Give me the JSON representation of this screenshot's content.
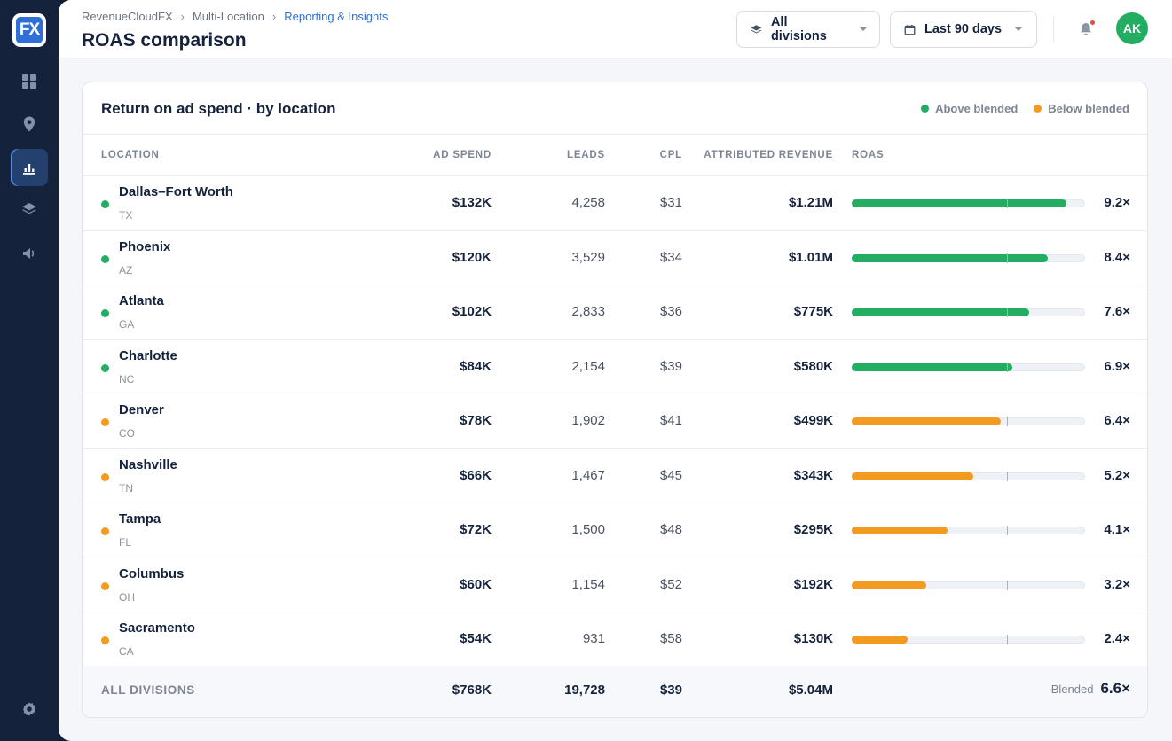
{
  "app": {
    "logo_text": "FX"
  },
  "sidebar": {
    "items": [
      {
        "icon": "grid-icon",
        "active": false
      },
      {
        "icon": "location-pin-icon",
        "active": false
      },
      {
        "icon": "bar-chart-icon",
        "active": true
      },
      {
        "icon": "layers-icon",
        "active": false
      },
      {
        "icon": "megaphone-icon",
        "active": false
      }
    ],
    "bottom_icon": "settings-gear-icon"
  },
  "header": {
    "breadcrumbs": [
      "RevenueCloudFX",
      "Multi-Location",
      "Reporting & Insights"
    ],
    "page_title": "ROAS comparison",
    "division_filter": "All divisions",
    "date_filter": "Last 90 days",
    "avatar_initials": "AK"
  },
  "card": {
    "title": "Return on ad spend · by location",
    "legend": {
      "above": "Above blended",
      "below": "Below blended",
      "above_color": "#22ad63",
      "below_color": "#f39a21"
    },
    "columns": {
      "location": "LOCATION",
      "ad_spend": "AD SPEND",
      "leads": "LEADS",
      "cpl": "CPL",
      "revenue": "ATTRIBUTED REVENUE",
      "roas": "ROAS"
    },
    "roas_scale_max": 10,
    "rows": [
      {
        "name": "Dallas–Fort Worth",
        "state": "TX",
        "spend": "$132K",
        "leads": "4,258",
        "cpl": "$31",
        "revenue": "$1.21M",
        "roas": "9.2×",
        "roas_value": 9.2,
        "above": true
      },
      {
        "name": "Phoenix",
        "state": "AZ",
        "spend": "$120K",
        "leads": "3,529",
        "cpl": "$34",
        "revenue": "$1.01M",
        "roas": "8.4×",
        "roas_value": 8.4,
        "above": true
      },
      {
        "name": "Atlanta",
        "state": "GA",
        "spend": "$102K",
        "leads": "2,833",
        "cpl": "$36",
        "revenue": "$775K",
        "roas": "7.6×",
        "roas_value": 7.6,
        "above": true
      },
      {
        "name": "Charlotte",
        "state": "NC",
        "spend": "$84K",
        "leads": "2,154",
        "cpl": "$39",
        "revenue": "$580K",
        "roas": "6.9×",
        "roas_value": 6.9,
        "above": true
      },
      {
        "name": "Denver",
        "state": "CO",
        "spend": "$78K",
        "leads": "1,902",
        "cpl": "$41",
        "revenue": "$499K",
        "roas": "6.4×",
        "roas_value": 6.4,
        "above": false
      },
      {
        "name": "Nashville",
        "state": "TN",
        "spend": "$66K",
        "leads": "1,467",
        "cpl": "$45",
        "revenue": "$343K",
        "roas": "5.2×",
        "roas_value": 5.2,
        "above": false
      },
      {
        "name": "Tampa",
        "state": "FL",
        "spend": "$72K",
        "leads": "1,500",
        "cpl": "$48",
        "revenue": "$295K",
        "roas": "4.1×",
        "roas_value": 4.1,
        "above": false
      },
      {
        "name": "Columbus",
        "state": "OH",
        "spend": "$60K",
        "leads": "1,154",
        "cpl": "$52",
        "revenue": "$192K",
        "roas": "3.2×",
        "roas_value": 3.2,
        "above": false
      },
      {
        "name": "Sacramento",
        "state": "CA",
        "spend": "$54K",
        "leads": "931",
        "cpl": "$58",
        "revenue": "$130K",
        "roas": "2.4×",
        "roas_value": 2.4,
        "above": false
      }
    ],
    "totals": {
      "label": "ALL DIVISIONS",
      "spend": "$768K",
      "leads": "19,728",
      "cpl": "$39",
      "revenue": "$5.04M",
      "blended_label": "Blended",
      "blended_roas": "6.6×",
      "blended_value": 6.6
    }
  }
}
